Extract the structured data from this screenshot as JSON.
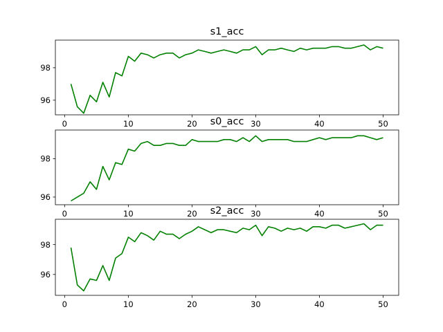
{
  "chart_data": [
    {
      "type": "line",
      "title": "s1_acc",
      "xlabel": "",
      "ylabel": "",
      "xlim": [
        1,
        50
      ],
      "ylim": [
        95.1,
        99.7
      ],
      "xticks": [
        0,
        10,
        20,
        30,
        40,
        50
      ],
      "yticks": [
        96,
        98
      ],
      "grid": false,
      "color": "#008000",
      "x": [
        1,
        2,
        3,
        4,
        5,
        6,
        7,
        8,
        9,
        10,
        11,
        12,
        13,
        14,
        15,
        16,
        17,
        18,
        19,
        20,
        21,
        22,
        23,
        24,
        25,
        26,
        27,
        28,
        29,
        30,
        31,
        32,
        33,
        34,
        35,
        36,
        37,
        38,
        39,
        40,
        41,
        42,
        43,
        44,
        45,
        46,
        47,
        48,
        49,
        50
      ],
      "y": [
        97.0,
        95.6,
        95.2,
        96.3,
        95.9,
        97.1,
        96.2,
        97.7,
        97.5,
        98.7,
        98.4,
        98.9,
        98.8,
        98.6,
        98.8,
        98.9,
        98.9,
        98.6,
        98.8,
        98.9,
        99.1,
        99.0,
        98.9,
        99.0,
        99.1,
        99.0,
        98.9,
        99.1,
        99.1,
        99.3,
        98.8,
        99.1,
        99.1,
        99.2,
        99.1,
        99.0,
        99.2,
        99.1,
        99.2,
        99.2,
        99.2,
        99.3,
        99.3,
        99.2,
        99.2,
        99.3,
        99.4,
        99.1,
        99.3,
        99.2
      ]
    },
    {
      "type": "line",
      "title": "s0_acc",
      "xlabel": "",
      "ylabel": "",
      "xlim": [
        1,
        50
      ],
      "ylim": [
        95.6,
        99.5
      ],
      "xticks": [
        0,
        10,
        20,
        30,
        40,
        50
      ],
      "yticks": [
        96,
        98
      ],
      "grid": false,
      "color": "#008000",
      "x": [
        1,
        2,
        3,
        4,
        5,
        6,
        7,
        8,
        9,
        10,
        11,
        12,
        13,
        14,
        15,
        16,
        17,
        18,
        19,
        20,
        21,
        22,
        23,
        24,
        25,
        26,
        27,
        28,
        29,
        30,
        31,
        32,
        33,
        34,
        35,
        36,
        37,
        38,
        39,
        40,
        41,
        42,
        43,
        44,
        45,
        46,
        47,
        48,
        49,
        50
      ],
      "y": [
        95.8,
        96.0,
        96.2,
        96.8,
        96.4,
        97.6,
        96.9,
        97.8,
        97.7,
        98.5,
        98.4,
        98.8,
        98.9,
        98.7,
        98.7,
        98.8,
        98.8,
        98.7,
        98.7,
        99.0,
        98.9,
        98.9,
        98.9,
        98.9,
        99.0,
        99.0,
        98.9,
        99.1,
        98.9,
        99.2,
        98.9,
        99.0,
        99.0,
        99.0,
        99.0,
        98.9,
        98.9,
        98.9,
        99.0,
        99.1,
        99.0,
        99.1,
        99.1,
        99.1,
        99.1,
        99.2,
        99.2,
        99.1,
        99.0,
        99.1
      ]
    },
    {
      "type": "line",
      "title": "s2_acc",
      "xlabel": "",
      "ylabel": "",
      "xlim": [
        1,
        50
      ],
      "ylim": [
        94.6,
        99.7
      ],
      "xticks": [
        0,
        10,
        20,
        30,
        40,
        50
      ],
      "yticks": [
        96,
        98
      ],
      "grid": false,
      "color": "#008000",
      "x": [
        1,
        2,
        3,
        4,
        5,
        6,
        7,
        8,
        9,
        10,
        11,
        12,
        13,
        14,
        15,
        16,
        17,
        18,
        19,
        20,
        21,
        22,
        23,
        24,
        25,
        26,
        27,
        28,
        29,
        30,
        31,
        32,
        33,
        34,
        35,
        36,
        37,
        38,
        39,
        40,
        41,
        42,
        43,
        44,
        45,
        46,
        47,
        48,
        49,
        50
      ],
      "y": [
        97.8,
        95.3,
        94.9,
        95.7,
        95.6,
        96.6,
        95.6,
        97.1,
        97.4,
        98.5,
        98.2,
        98.8,
        98.6,
        98.3,
        98.9,
        98.7,
        98.7,
        98.4,
        98.7,
        98.9,
        99.2,
        99.0,
        98.8,
        99.0,
        99.0,
        98.9,
        98.8,
        99.1,
        99.0,
        99.3,
        98.6,
        99.2,
        99.1,
        98.9,
        99.1,
        99.0,
        99.1,
        98.9,
        99.2,
        99.2,
        99.1,
        99.3,
        99.3,
        99.1,
        99.2,
        99.3,
        99.4,
        99.0,
        99.3,
        99.3
      ]
    }
  ]
}
